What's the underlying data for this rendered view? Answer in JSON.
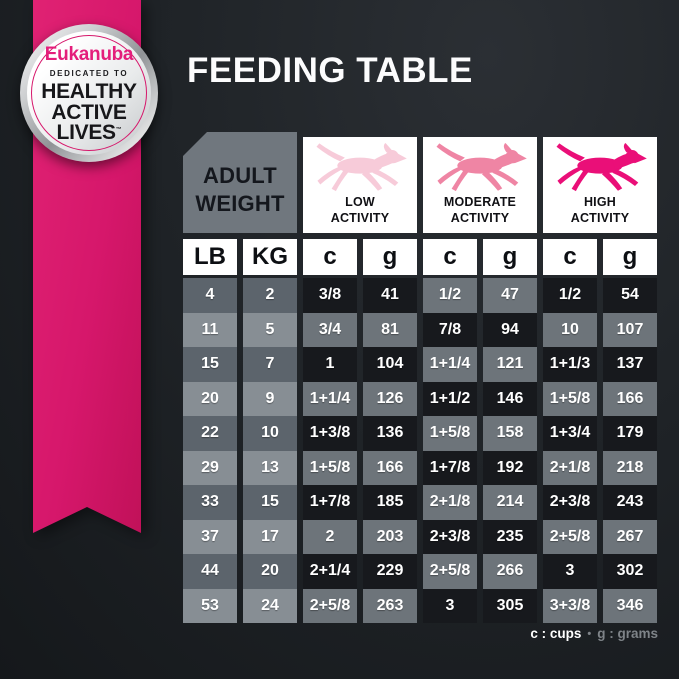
{
  "title": "FEEDING TABLE",
  "badge": {
    "brand": "Eukanuba",
    "tagline": "DEDICATED TO",
    "line1": "HEALTHY",
    "line2": "ACTIVE",
    "line3": "LIVES",
    "trademark": "™"
  },
  "colors": {
    "bg": "#1f2327",
    "bgHi": "#2b2f34",
    "bgLo": "#15181b",
    "ribbon": "#d6176b",
    "ribbonHi": "#e02273",
    "ribbonLo": "#c11159",
    "brandPink": "#e41e7b",
    "adultBg": "#70777e",
    "cellDark": "#17191d",
    "cellSlate": "#6d747a",
    "weightDark": "#5c646c",
    "weightLight": "#878e94",
    "legendGray": "#7e8388",
    "dogLow": "#f7cbd9",
    "dogModerate": "#ef85a4",
    "dogHigh": "#ea0f78"
  },
  "table": {
    "corner_header": {
      "line1": "ADULT",
      "line2": "WEIGHT"
    },
    "activities": [
      {
        "label_line1": "LOW",
        "label_line2": "ACTIVITY",
        "dog_color_key": "dogLow"
      },
      {
        "label_line1": "MODERATE",
        "label_line2": "ACTIVITY",
        "dog_color_key": "dogModerate"
      },
      {
        "label_line1": "HIGH",
        "label_line2": "ACTIVITY",
        "dog_color_key": "dogHigh"
      }
    ],
    "unit_headers": [
      "LB",
      "KG",
      "c",
      "g",
      "c",
      "g",
      "c",
      "g"
    ]
  },
  "legend": {
    "cups": "c : cups",
    "separator": "•",
    "grams": "g : grams"
  },
  "chart_data": {
    "type": "table",
    "title": "FEEDING TABLE",
    "columns": [
      "LB",
      "KG",
      "Low Activity c",
      "Low Activity g",
      "Moderate Activity c",
      "Moderate Activity g",
      "High Activity c",
      "High Activity g"
    ],
    "rows": [
      [
        "4",
        "2",
        "3/8",
        "41",
        "1/2",
        "47",
        "1/2",
        "54"
      ],
      [
        "11",
        "5",
        "3/4",
        "81",
        "7/8",
        "94",
        "10",
        "107"
      ],
      [
        "15",
        "7",
        "1",
        "104",
        "1+1/4",
        "121",
        "1+1/3",
        "137"
      ],
      [
        "20",
        "9",
        "1+1/4",
        "126",
        "1+1/2",
        "146",
        "1+5/8",
        "166"
      ],
      [
        "22",
        "10",
        "1+3/8",
        "136",
        "1+5/8",
        "158",
        "1+3/4",
        "179"
      ],
      [
        "29",
        "13",
        "1+5/8",
        "166",
        "1+7/8",
        "192",
        "2+1/8",
        "218"
      ],
      [
        "33",
        "15",
        "1+7/8",
        "185",
        "2+1/8",
        "214",
        "2+3/8",
        "243"
      ],
      [
        "37",
        "17",
        "2",
        "203",
        "2+3/8",
        "235",
        "2+5/8",
        "267"
      ],
      [
        "44",
        "20",
        "2+1/4",
        "229",
        "2+5/8",
        "266",
        "3",
        "302"
      ],
      [
        "53",
        "24",
        "2+5/8",
        "263",
        "3",
        "305",
        "3+3/8",
        "346"
      ]
    ],
    "units_note": "c : cups • g : grams"
  }
}
